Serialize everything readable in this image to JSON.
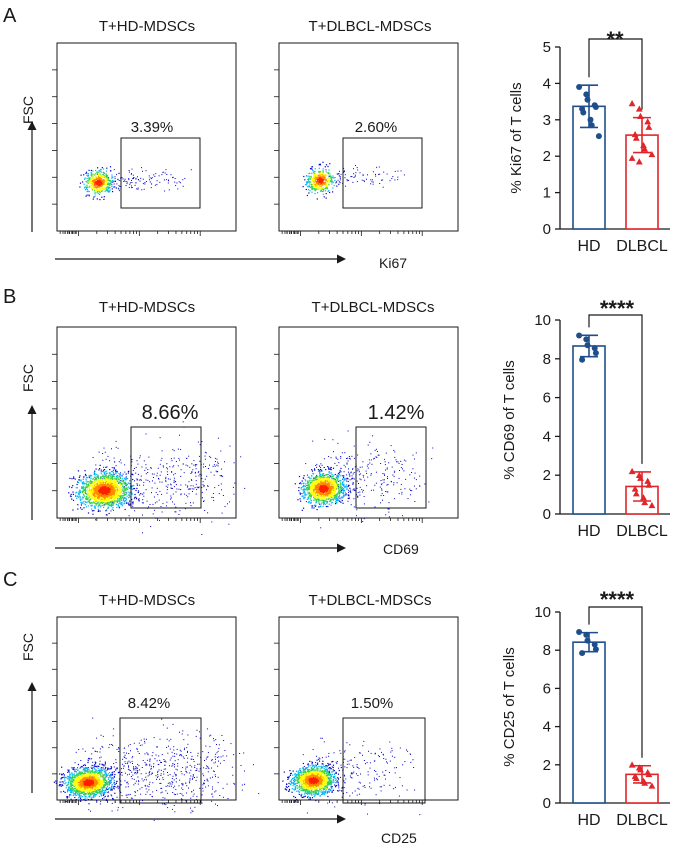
{
  "colors": {
    "hd": "#1f4e8c",
    "dlbcl": "#e0262b",
    "axis": "#1a1a1a",
    "flow_density": [
      "#0000c8",
      "#00b4ff",
      "#30d050",
      "#ffff00",
      "#ff8c00",
      "#ff2000"
    ]
  },
  "axis_labels": {
    "fsc": "FSC"
  },
  "panels": [
    {
      "letter": "A",
      "marker": "Ki67",
      "flow_plots": [
        {
          "title": "T+HD-MDSCs",
          "gate_pct": "3.39%",
          "density": "low"
        },
        {
          "title": "T+DLBCL-MDSCs",
          "gate_pct": "2.60%",
          "density": "low"
        }
      ]
    },
    {
      "letter": "B",
      "marker": "CD69",
      "flow_plots": [
        {
          "title": "T+HD-MDSCs",
          "gate_pct": "8.66%",
          "density": "high"
        },
        {
          "title": "T+DLBCL-MDSCs",
          "gate_pct": "1.42%",
          "density": "high"
        }
      ]
    },
    {
      "letter": "C",
      "marker": "CD25",
      "flow_plots": [
        {
          "title": "T+HD-MDSCs",
          "gate_pct": "8.42%",
          "density": "high"
        },
        {
          "title": "T+DLBCL-MDSCs",
          "gate_pct": "1.50%",
          "density": "high"
        }
      ]
    }
  ],
  "chart_data": [
    {
      "type": "bar",
      "title": "",
      "ylabel": "% Ki67 of  T cells",
      "xlabel": "",
      "categories": [
        "HD",
        "DLBCL"
      ],
      "ylim": [
        0,
        5
      ],
      "yticks": [
        0,
        1,
        2,
        3,
        4,
        5
      ],
      "values": [
        3.37,
        2.58
      ],
      "errors": [
        0.58,
        0.48
      ],
      "points": [
        [
          3.9,
          3.7,
          3.55,
          3.4,
          3.35,
          3.3,
          3.2,
          3.0,
          2.85,
          2.55
        ],
        [
          3.45,
          3.3,
          3.1,
          2.95,
          2.8,
          2.6,
          2.5,
          2.3,
          2.2,
          2.05,
          1.95,
          1.85
        ]
      ],
      "significance": "**"
    },
    {
      "type": "bar",
      "title": "",
      "ylabel": "% CD69 of  T cells",
      "xlabel": "",
      "categories": [
        "HD",
        "DLBCL"
      ],
      "ylim": [
        0,
        10
      ],
      "yticks": [
        0,
        2,
        4,
        6,
        8,
        10
      ],
      "values": [
        8.66,
        1.42
      ],
      "errors": [
        0.55,
        0.75
      ],
      "points": [
        [
          9.2,
          9.0,
          8.7,
          8.55,
          8.3,
          7.95
        ],
        [
          2.2,
          2.0,
          1.85,
          1.7,
          1.5,
          1.3,
          1.05,
          0.85,
          0.6,
          0.45
        ]
      ],
      "significance": "****"
    },
    {
      "type": "bar",
      "title": "",
      "ylabel": "% CD25 of  T cells",
      "xlabel": "",
      "categories": [
        "HD",
        "DLBCL"
      ],
      "ylim": [
        0,
        10
      ],
      "yticks": [
        0,
        2,
        4,
        6,
        8,
        10
      ],
      "values": [
        8.42,
        1.5
      ],
      "errors": [
        0.5,
        0.45
      ],
      "points": [
        [
          8.95,
          8.8,
          8.5,
          8.3,
          8.05,
          7.85
        ],
        [
          2.0,
          1.85,
          1.75,
          1.6,
          1.5,
          1.4,
          1.3,
          1.15,
          1.05,
          0.9
        ]
      ],
      "significance": "****"
    }
  ]
}
